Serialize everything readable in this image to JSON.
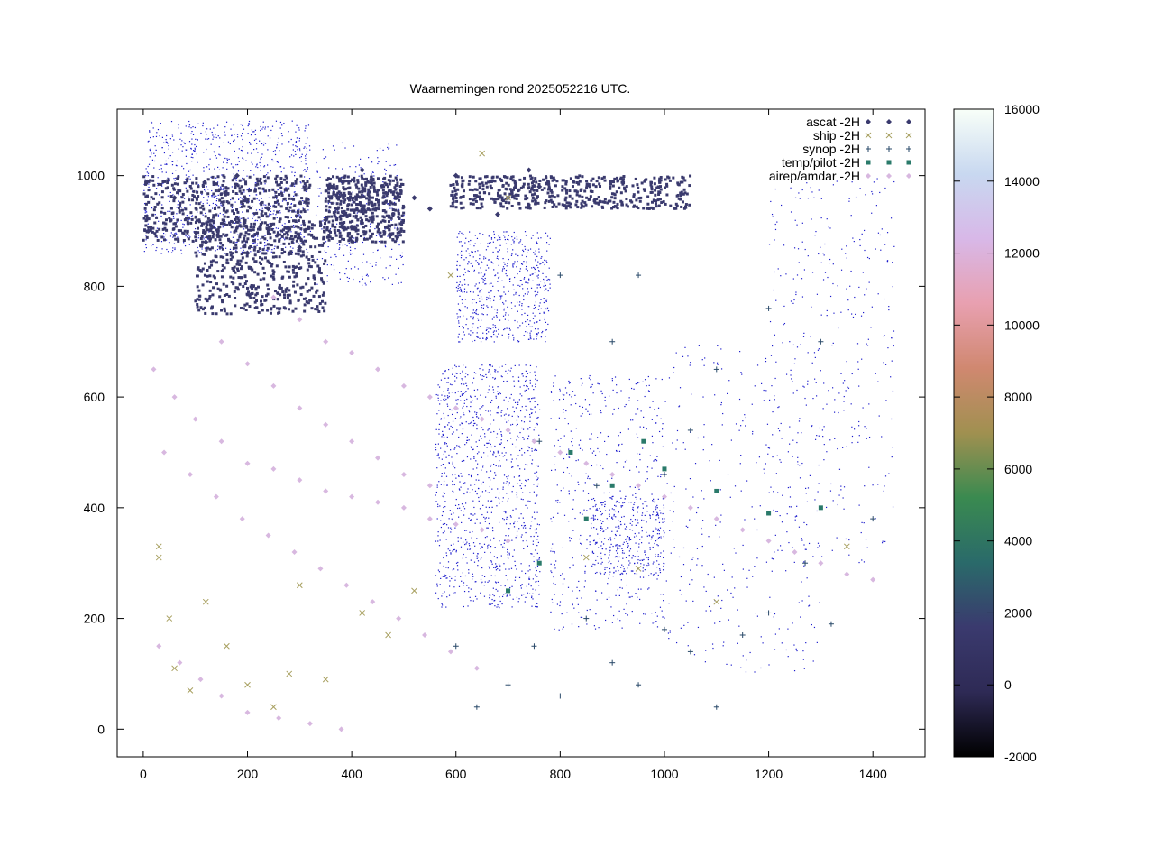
{
  "chart_data": {
    "type": "scatter",
    "title": "Waarnemingen rond 2025052216 UTC.",
    "xlim": [
      -50,
      1500
    ],
    "ylim": [
      -50,
      1120
    ],
    "x_ticks": [
      0,
      200,
      400,
      600,
      800,
      1000,
      1200,
      1400
    ],
    "y_ticks": [
      0,
      200,
      400,
      600,
      800,
      1000
    ],
    "grid": false,
    "legend_position": "top-right",
    "legend": [
      {
        "name": "ascat -2H",
        "marker": "diamond",
        "color": "#3a3a6e"
      },
      {
        "name": "ship -2H",
        "marker": "x",
        "color": "#a8a060"
      },
      {
        "name": "synop -2H",
        "marker": "plus",
        "color": "#2a4a6a"
      },
      {
        "name": "temp/pilot -2H",
        "marker": "square",
        "color": "#2a7a6a"
      },
      {
        "name": "airep/amdar -2H",
        "marker": "diamond",
        "color": "#d8b8e0"
      }
    ],
    "colorbar": {
      "min": -2000,
      "max": 16000,
      "ticks": [
        -2000,
        0,
        2000,
        4000,
        6000,
        8000,
        10000,
        12000,
        14000,
        16000
      ],
      "stops": [
        "#000000",
        "#2e2a55",
        "#3a3a6e",
        "#2a6a6a",
        "#3a8a50",
        "#a09050",
        "#d08870",
        "#e8a0b0",
        "#d8b8e8",
        "#c8d8f0",
        "#f8fff8"
      ]
    },
    "series": [
      {
        "name": "ascat -2H",
        "points": [
          [
            10,
            900
          ],
          [
            60,
            960
          ],
          [
            120,
            880
          ],
          [
            180,
            1000
          ],
          [
            240,
            940
          ],
          [
            300,
            870
          ],
          [
            360,
            980
          ],
          [
            420,
            1010
          ],
          [
            520,
            960
          ],
          [
            600,
            1000
          ],
          [
            680,
            930
          ],
          [
            740,
            1010
          ],
          [
            760,
            980
          ],
          [
            700,
            960
          ],
          [
            550,
            940
          ],
          [
            350,
            920
          ],
          [
            200,
            860
          ]
        ]
      },
      {
        "name": "ship -2H",
        "points": [
          [
            30,
            330
          ],
          [
            30,
            310
          ],
          [
            50,
            200
          ],
          [
            60,
            110
          ],
          [
            90,
            70
          ],
          [
            120,
            230
          ],
          [
            160,
            150
          ],
          [
            200,
            80
          ],
          [
            250,
            40
          ],
          [
            280,
            100
          ],
          [
            300,
            260
          ],
          [
            350,
            90
          ],
          [
            420,
            210
          ],
          [
            470,
            170
          ],
          [
            520,
            250
          ],
          [
            590,
            820
          ],
          [
            650,
            1040
          ],
          [
            700,
            960
          ],
          [
            850,
            310
          ],
          [
            950,
            290
          ],
          [
            1100,
            230
          ],
          [
            1350,
            330
          ]
        ]
      },
      {
        "name": "synop -2H",
        "points": [
          [
            600,
            150
          ],
          [
            640,
            40
          ],
          [
            700,
            80
          ],
          [
            750,
            150
          ],
          [
            800,
            60
          ],
          [
            850,
            200
          ],
          [
            900,
            120
          ],
          [
            950,
            80
          ],
          [
            1000,
            180
          ],
          [
            1050,
            140
          ],
          [
            1100,
            40
          ],
          [
            1150,
            170
          ],
          [
            1200,
            210
          ],
          [
            1270,
            300
          ],
          [
            1320,
            190
          ],
          [
            1400,
            380
          ],
          [
            1100,
            650
          ],
          [
            1200,
            760
          ],
          [
            1300,
            700
          ],
          [
            900,
            700
          ],
          [
            800,
            820
          ],
          [
            950,
            820
          ],
          [
            1050,
            540
          ],
          [
            1000,
            460
          ],
          [
            870,
            440
          ],
          [
            760,
            520
          ]
        ]
      },
      {
        "name": "temp/pilot -2H",
        "points": [
          [
            820,
            500
          ],
          [
            900,
            440
          ],
          [
            960,
            520
          ],
          [
            1000,
            470
          ],
          [
            850,
            380
          ],
          [
            1100,
            430
          ],
          [
            1200,
            390
          ],
          [
            1300,
            400
          ],
          [
            760,
            300
          ],
          [
            700,
            250
          ]
        ]
      },
      {
        "name": "airep/amdar -2H",
        "points": [
          [
            20,
            650
          ],
          [
            60,
            600
          ],
          [
            100,
            560
          ],
          [
            150,
            520
          ],
          [
            200,
            480
          ],
          [
            250,
            470
          ],
          [
            300,
            450
          ],
          [
            350,
            430
          ],
          [
            400,
            420
          ],
          [
            450,
            410
          ],
          [
            500,
            400
          ],
          [
            550,
            380
          ],
          [
            600,
            370
          ],
          [
            650,
            360
          ],
          [
            700,
            340
          ],
          [
            40,
            500
          ],
          [
            90,
            460
          ],
          [
            140,
            420
          ],
          [
            190,
            380
          ],
          [
            240,
            350
          ],
          [
            290,
            320
          ],
          [
            340,
            290
          ],
          [
            390,
            260
          ],
          [
            440,
            230
          ],
          [
            490,
            200
          ],
          [
            540,
            170
          ],
          [
            590,
            140
          ],
          [
            640,
            110
          ],
          [
            150,
            700
          ],
          [
            200,
            660
          ],
          [
            250,
            620
          ],
          [
            300,
            580
          ],
          [
            350,
            550
          ],
          [
            400,
            520
          ],
          [
            450,
            490
          ],
          [
            500,
            460
          ],
          [
            550,
            440
          ],
          [
            250,
            780
          ],
          [
            300,
            740
          ],
          [
            350,
            700
          ],
          [
            400,
            680
          ],
          [
            450,
            650
          ],
          [
            500,
            620
          ],
          [
            550,
            600
          ],
          [
            600,
            580
          ],
          [
            650,
            560
          ],
          [
            700,
            540
          ],
          [
            750,
            520
          ],
          [
            800,
            500
          ],
          [
            850,
            480
          ],
          [
            900,
            460
          ],
          [
            950,
            440
          ],
          [
            1000,
            420
          ],
          [
            1050,
            400
          ],
          [
            1100,
            380
          ],
          [
            1150,
            360
          ],
          [
            1200,
            340
          ],
          [
            1250,
            320
          ],
          [
            1300,
            300
          ],
          [
            1350,
            280
          ],
          [
            1400,
            270
          ],
          [
            30,
            150
          ],
          [
            70,
            120
          ],
          [
            110,
            90
          ],
          [
            150,
            60
          ],
          [
            200,
            30
          ],
          [
            260,
            20
          ],
          [
            320,
            10
          ],
          [
            380,
            0
          ]
        ]
      }
    ]
  }
}
